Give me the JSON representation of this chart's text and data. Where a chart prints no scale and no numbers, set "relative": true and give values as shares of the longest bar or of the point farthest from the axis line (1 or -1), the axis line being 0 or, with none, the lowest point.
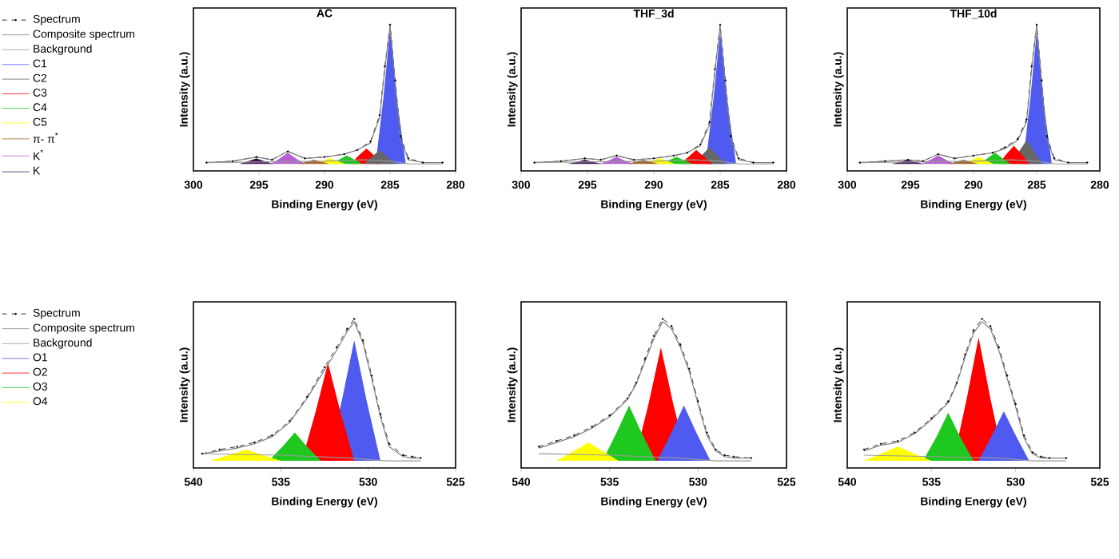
{
  "chart_data": [
    {
      "type": "line",
      "title": "AC",
      "xlabel": "Binding Energy (eV)",
      "ylabel": "Intensity (a.u.)",
      "xlim": [
        300,
        280
      ],
      "xticks": [
        300,
        295,
        290,
        285,
        280
      ],
      "relative": true,
      "legend": "left",
      "series": [
        {
          "name": "Spectrum",
          "type": "line",
          "color": "#000000",
          "line_style": "dashed",
          "marker": "circle",
          "x": [
            299,
            297,
            295.2,
            294,
            292.8,
            291.5,
            290,
            288.5,
            287.5,
            286.5,
            285.8,
            285.4,
            285.0,
            284.6,
            284.2,
            283.6,
            282.5,
            281
          ],
          "values": [
            0.01,
            0.02,
            0.05,
            0.03,
            0.09,
            0.04,
            0.05,
            0.07,
            0.1,
            0.16,
            0.35,
            0.7,
            1.0,
            0.6,
            0.2,
            0.04,
            0.01,
            0.01
          ]
        },
        {
          "name": "Composite spectrum",
          "type": "line",
          "color": "#808080",
          "line_style": "solid",
          "x": [
            299,
            297,
            295.2,
            294,
            292.8,
            291.5,
            290,
            288.5,
            287.5,
            286.5,
            285.8,
            285.4,
            285.0,
            284.6,
            284.2,
            283.6,
            282.5,
            281
          ],
          "values": [
            0.01,
            0.02,
            0.05,
            0.03,
            0.09,
            0.04,
            0.05,
            0.07,
            0.1,
            0.15,
            0.33,
            0.68,
            0.99,
            0.58,
            0.18,
            0.03,
            0.01,
            0.01
          ]
        },
        {
          "name": "Background",
          "type": "line",
          "color": "#999999",
          "line_style": "solid",
          "x": [
            299,
            290,
            287,
            285,
            283.5,
            281
          ],
          "values": [
            0.01,
            0.02,
            0.03,
            0.02,
            0.0,
            0.0
          ]
        },
        {
          "name": "C1",
          "type": "area",
          "color": "#4f5bf0",
          "x": [
            286.1,
            285.5,
            285.0,
            284.5,
            283.8
          ],
          "values": [
            0,
            0.48,
            0.97,
            0.48,
            0
          ]
        },
        {
          "name": "C2",
          "type": "area",
          "color": "#666666",
          "x": [
            287.0,
            286.4,
            285.8,
            285.2,
            284.6
          ],
          "values": [
            0,
            0.05,
            0.1,
            0.05,
            0
          ]
        },
        {
          "name": "C3",
          "type": "area",
          "color": "#ff0000",
          "x": [
            288.0,
            287.4,
            286.8,
            286.2,
            285.6
          ],
          "values": [
            0,
            0.06,
            0.11,
            0.06,
            0
          ]
        },
        {
          "name": "C4",
          "type": "area",
          "color": "#1ec81e",
          "x": [
            289.5,
            288.9,
            288.3,
            287.7,
            287.1
          ],
          "values": [
            0,
            0.03,
            0.06,
            0.03,
            0
          ]
        },
        {
          "name": "C5",
          "type": "area",
          "color": "#ffff00",
          "x": [
            290.8,
            290.2,
            289.6,
            289.0,
            288.4
          ],
          "values": [
            0,
            0.02,
            0.04,
            0.02,
            0
          ]
        },
        {
          "name": "π- π$^{*}$",
          "type": "area",
          "color": "#a0642d",
          "x": [
            292.0,
            291.4,
            290.8,
            290.2,
            289.6
          ],
          "values": [
            0,
            0.015,
            0.03,
            0.015,
            0
          ]
        },
        {
          "name": "K$^{*}$",
          "type": "area",
          "color": "#b45fd2",
          "x": [
            294.1,
            293.4,
            292.8,
            292.2,
            291.5
          ],
          "values": [
            0,
            0.04,
            0.08,
            0.04,
            0
          ]
        },
        {
          "name": "K",
          "type": "area",
          "color": "#3c1450",
          "x": [
            296.5,
            295.8,
            295.2,
            294.6,
            293.9
          ],
          "values": [
            0,
            0.02,
            0.04,
            0.02,
            0
          ]
        }
      ]
    },
    {
      "type": "line",
      "title": "THF_3d",
      "xlabel": "Binding Energy (eV)",
      "ylabel": "Intensity (a.u.)",
      "xlim": [
        300,
        280
      ],
      "xticks": [
        300,
        295,
        290,
        285,
        280
      ],
      "relative": true,
      "series": [
        {
          "type": "line",
          "color": "#000000",
          "line_style": "dashed",
          "marker": "circle",
          "x": [
            299,
            297,
            295.2,
            294,
            292.8,
            291.5,
            290,
            288.5,
            287.5,
            286.5,
            285.8,
            285.4,
            285.0,
            284.6,
            284.2,
            283.6,
            282.5,
            281
          ],
          "values": [
            0.01,
            0.02,
            0.04,
            0.03,
            0.06,
            0.03,
            0.04,
            0.06,
            0.08,
            0.14,
            0.3,
            0.68,
            1.0,
            0.6,
            0.2,
            0.04,
            0.01,
            0.01
          ]
        },
        {
          "type": "line",
          "color": "#808080",
          "line_style": "solid",
          "x": [
            299,
            297,
            295.2,
            294,
            292.8,
            291.5,
            290,
            288.5,
            287.5,
            286.5,
            285.8,
            285.4,
            285.0,
            284.6,
            284.2,
            283.6,
            282.5,
            281
          ],
          "values": [
            0.01,
            0.02,
            0.04,
            0.03,
            0.06,
            0.03,
            0.04,
            0.06,
            0.08,
            0.13,
            0.28,
            0.66,
            0.99,
            0.58,
            0.18,
            0.03,
            0.01,
            0.01
          ]
        },
        {
          "type": "line",
          "color": "#999999",
          "line_style": "solid",
          "x": [
            299,
            290,
            287,
            285,
            283.5,
            281
          ],
          "values": [
            0.01,
            0.02,
            0.03,
            0.02,
            0.0,
            0.0
          ]
        },
        {
          "type": "area",
          "color": "#4f5bf0",
          "x": [
            286.1,
            285.5,
            285.0,
            284.5,
            283.8
          ],
          "values": [
            0,
            0.47,
            0.95,
            0.47,
            0
          ]
        },
        {
          "type": "area",
          "color": "#666666",
          "x": [
            287.0,
            286.4,
            285.8,
            285.2,
            284.6
          ],
          "values": [
            0,
            0.06,
            0.12,
            0.06,
            0
          ]
        },
        {
          "type": "area",
          "color": "#ff0000",
          "x": [
            288.0,
            287.4,
            286.8,
            286.2,
            285.6
          ],
          "values": [
            0,
            0.05,
            0.1,
            0.05,
            0
          ]
        },
        {
          "type": "area",
          "color": "#1ec81e",
          "x": [
            289.5,
            288.9,
            288.3,
            287.7,
            287.1
          ],
          "values": [
            0,
            0.025,
            0.05,
            0.025,
            0
          ]
        },
        {
          "type": "area",
          "color": "#ffff00",
          "x": [
            290.8,
            290.2,
            289.6,
            289.0,
            288.4
          ],
          "values": [
            0,
            0.02,
            0.04,
            0.02,
            0
          ]
        },
        {
          "type": "area",
          "color": "#a0642d",
          "x": [
            292.0,
            291.4,
            290.8,
            290.2,
            289.6
          ],
          "values": [
            0,
            0.015,
            0.03,
            0.015,
            0
          ]
        },
        {
          "type": "area",
          "color": "#b45fd2",
          "x": [
            294.1,
            293.4,
            292.8,
            292.2,
            291.5
          ],
          "values": [
            0,
            0.025,
            0.05,
            0.025,
            0
          ]
        },
        {
          "type": "area",
          "color": "#3c1450",
          "x": [
            296.5,
            295.8,
            295.2,
            294.6,
            293.9
          ],
          "values": [
            0,
            0.015,
            0.03,
            0.015,
            0
          ]
        }
      ]
    },
    {
      "type": "line",
      "title": "THF_10d",
      "xlabel": "Binding Energy (eV)",
      "ylabel": "Intensity (a.u.)",
      "xlim": [
        300,
        280
      ],
      "xticks": [
        300,
        295,
        290,
        285,
        280
      ],
      "relative": true,
      "series": [
        {
          "type": "line",
          "color": "#000000",
          "line_style": "dashed",
          "marker": "circle",
          "x": [
            299,
            297,
            295.2,
            294,
            292.8,
            291.5,
            290,
            288.5,
            287.5,
            286.5,
            285.8,
            285.4,
            285.0,
            284.6,
            284.2,
            283.6,
            282.5,
            281
          ],
          "values": [
            0.01,
            0.02,
            0.03,
            0.02,
            0.07,
            0.04,
            0.06,
            0.08,
            0.12,
            0.18,
            0.32,
            0.7,
            1.0,
            0.6,
            0.2,
            0.04,
            0.01,
            0.01
          ]
        },
        {
          "type": "line",
          "color": "#808080",
          "line_style": "solid",
          "x": [
            299,
            297,
            295.2,
            294,
            292.8,
            291.5,
            290,
            288.5,
            287.5,
            286.5,
            285.8,
            285.4,
            285.0,
            284.6,
            284.2,
            283.6,
            282.5,
            281
          ],
          "values": [
            0.01,
            0.02,
            0.03,
            0.02,
            0.07,
            0.04,
            0.06,
            0.08,
            0.11,
            0.17,
            0.3,
            0.68,
            0.99,
            0.58,
            0.18,
            0.03,
            0.01,
            0.01
          ]
        },
        {
          "type": "line",
          "color": "#999999",
          "line_style": "solid",
          "x": [
            299,
            290,
            287,
            285,
            283.5,
            281
          ],
          "values": [
            0.01,
            0.02,
            0.03,
            0.02,
            0.0,
            0.0
          ]
        },
        {
          "type": "area",
          "color": "#4f5bf0",
          "x": [
            286.1,
            285.5,
            285.0,
            284.5,
            283.8
          ],
          "values": [
            0,
            0.47,
            0.95,
            0.47,
            0
          ]
        },
        {
          "type": "area",
          "color": "#666666",
          "x": [
            287.0,
            286.4,
            285.8,
            285.2,
            284.6
          ],
          "values": [
            0,
            0.09,
            0.17,
            0.09,
            0
          ]
        },
        {
          "type": "area",
          "color": "#ff0000",
          "x": [
            288.0,
            287.4,
            286.8,
            286.2,
            285.6
          ],
          "values": [
            0,
            0.07,
            0.13,
            0.07,
            0
          ]
        },
        {
          "type": "area",
          "color": "#1ec81e",
          "x": [
            289.5,
            288.9,
            288.3,
            287.7,
            287.1
          ],
          "values": [
            0,
            0.04,
            0.08,
            0.04,
            0
          ]
        },
        {
          "type": "area",
          "color": "#ffff00",
          "x": [
            290.8,
            290.2,
            289.6,
            289.0,
            288.4
          ],
          "values": [
            0,
            0.025,
            0.05,
            0.025,
            0
          ]
        },
        {
          "type": "area",
          "color": "#a0642d",
          "x": [
            292.0,
            291.4,
            290.8,
            290.2,
            289.6
          ],
          "values": [
            0,
            0.015,
            0.03,
            0.015,
            0
          ]
        },
        {
          "type": "area",
          "color": "#b45fd2",
          "x": [
            294.1,
            293.4,
            292.8,
            292.2,
            291.5
          ],
          "values": [
            0,
            0.03,
            0.06,
            0.03,
            0
          ]
        },
        {
          "type": "area",
          "color": "#3c1450",
          "x": [
            296.5,
            295.8,
            295.2,
            294.6,
            293.9
          ],
          "values": [
            0,
            0.015,
            0.03,
            0.015,
            0
          ]
        }
      ]
    },
    {
      "type": "line",
      "xlabel": "Binding Energy (eV)",
      "ylabel": "Intensity (a.u.)",
      "xlim": [
        540,
        525
      ],
      "xticks": [
        540,
        535,
        530,
        525
      ],
      "relative": true,
      "legend": "left",
      "series": [
        {
          "name": "Spectrum",
          "type": "line",
          "color": "#000000",
          "line_style": "dashed",
          "marker": "circle",
          "x": [
            539.5,
            538.5,
            537.5,
            536.5,
            535.5,
            534.5,
            533.5,
            532.5,
            531.8,
            531.2,
            530.8,
            530.3,
            529.8,
            529.3,
            528.8,
            528,
            527.5,
            527
          ],
          "values": [
            0.05,
            0.08,
            0.1,
            0.13,
            0.18,
            0.28,
            0.45,
            0.66,
            0.8,
            0.93,
            1.0,
            0.85,
            0.6,
            0.33,
            0.12,
            0.04,
            0.03,
            0.02
          ]
        },
        {
          "name": "Composite spectrum",
          "type": "line",
          "color": "#808080",
          "line_style": "solid",
          "x": [
            539.5,
            538.5,
            537.5,
            536.5,
            535.5,
            534.5,
            533.5,
            532.5,
            531.8,
            531.2,
            530.8,
            530.3,
            529.8,
            529.3,
            528.8,
            528,
            527.5,
            527
          ],
          "values": [
            0.05,
            0.07,
            0.09,
            0.12,
            0.17,
            0.27,
            0.44,
            0.64,
            0.78,
            0.91,
            0.98,
            0.83,
            0.58,
            0.31,
            0.1,
            0.03,
            0.02,
            0.02
          ]
        },
        {
          "name": "Background",
          "type": "line",
          "color": "#999999",
          "line_style": "solid",
          "x": [
            539.5,
            535,
            531,
            529,
            527
          ],
          "values": [
            0.05,
            0.04,
            0.02,
            0.0,
            0.0
          ]
        },
        {
          "name": "O1",
          "type": "area",
          "color": "#4f5bf0",
          "x": [
            532.3,
            531.5,
            530.8,
            530.1,
            529.3
          ],
          "values": [
            0,
            0.43,
            0.85,
            0.43,
            0
          ]
        },
        {
          "name": "O2",
          "type": "area",
          "color": "#ff0000",
          "x": [
            533.8,
            533.0,
            532.3,
            531.6,
            530.8
          ],
          "values": [
            0,
            0.35,
            0.69,
            0.35,
            0
          ]
        },
        {
          "name": "O3",
          "type": "area",
          "color": "#1ec81e",
          "x": [
            535.7,
            534.9,
            534.2,
            533.5,
            532.7
          ],
          "values": [
            0,
            0.1,
            0.2,
            0.1,
            0
          ]
        },
        {
          "name": "O4",
          "type": "area",
          "color": "#ffff00",
          "x": [
            539,
            538,
            537,
            536,
            535
          ],
          "values": [
            0,
            0.04,
            0.08,
            0.04,
            0
          ]
        }
      ]
    },
    {
      "type": "line",
      "xlabel": "Binding Energy (eV)",
      "ylabel": "Intensity (a.u.)",
      "xlim": [
        540,
        525
      ],
      "xticks": [
        540,
        535,
        530,
        525
      ],
      "relative": true,
      "series": [
        {
          "type": "line",
          "color": "#000000",
          "line_style": "dashed",
          "marker": "circle",
          "x": [
            539,
            538,
            537,
            536,
            535,
            534,
            533.5,
            533,
            532.5,
            532,
            531.5,
            531,
            530.5,
            530,
            529.5,
            529,
            528.5,
            528,
            527
          ],
          "values": [
            0.1,
            0.14,
            0.18,
            0.24,
            0.32,
            0.44,
            0.55,
            0.72,
            0.88,
            1.0,
            0.95,
            0.82,
            0.65,
            0.42,
            0.2,
            0.08,
            0.04,
            0.03,
            0.02
          ]
        },
        {
          "type": "line",
          "color": "#808080",
          "line_style": "solid",
          "x": [
            539,
            538,
            537,
            536,
            535,
            534,
            533.5,
            533,
            532.5,
            532,
            531.5,
            531,
            530.5,
            530,
            529.5,
            529,
            528.5,
            528,
            527
          ],
          "values": [
            0.09,
            0.13,
            0.17,
            0.23,
            0.31,
            0.43,
            0.54,
            0.7,
            0.86,
            0.98,
            0.93,
            0.8,
            0.63,
            0.4,
            0.18,
            0.07,
            0.03,
            0.02,
            0.02
          ]
        },
        {
          "type": "line",
          "color": "#999999",
          "line_style": "solid",
          "x": [
            539,
            535,
            531,
            529,
            527
          ],
          "values": [
            0.05,
            0.04,
            0.02,
            0.0,
            0.0
          ]
        },
        {
          "type": "area",
          "color": "#4f5bf0",
          "x": [
            532.3,
            531.5,
            530.8,
            530.1,
            529.3
          ],
          "values": [
            0,
            0.2,
            0.39,
            0.2,
            0
          ]
        },
        {
          "type": "area",
          "color": "#ff0000",
          "x": [
            533.6,
            532.8,
            532.1,
            531.4,
            530.6
          ],
          "values": [
            0,
            0.4,
            0.8,
            0.4,
            0
          ]
        },
        {
          "type": "area",
          "color": "#1ec81e",
          "x": [
            535.4,
            534.6,
            533.9,
            533.2,
            532.4
          ],
          "values": [
            0,
            0.2,
            0.39,
            0.2,
            0
          ]
        },
        {
          "type": "area",
          "color": "#ffff00",
          "x": [
            538,
            537,
            536.2,
            535.4,
            534.5
          ],
          "values": [
            0,
            0.07,
            0.13,
            0.07,
            0
          ]
        }
      ]
    },
    {
      "type": "line",
      "xlabel": "Binding Energy (eV)",
      "ylabel": "Intensity (a.u.)",
      "xlim": [
        540,
        525
      ],
      "xticks": [
        540,
        535,
        530,
        525
      ],
      "relative": true,
      "series": [
        {
          "type": "line",
          "color": "#000000",
          "line_style": "dashed",
          "marker": "circle",
          "x": [
            539,
            538,
            537,
            536,
            535,
            534,
            533.5,
            533,
            532.5,
            532,
            531.5,
            531,
            530.5,
            530,
            529.5,
            529,
            528.5,
            528,
            527
          ],
          "values": [
            0.08,
            0.12,
            0.14,
            0.2,
            0.3,
            0.42,
            0.55,
            0.75,
            0.92,
            1.0,
            0.95,
            0.8,
            0.6,
            0.4,
            0.18,
            0.06,
            0.03,
            0.02,
            0.02
          ]
        },
        {
          "type": "line",
          "color": "#808080",
          "line_style": "solid",
          "x": [
            539,
            538,
            537,
            536,
            535,
            534,
            533.5,
            533,
            532.5,
            532,
            531.5,
            531,
            530.5,
            530,
            529.5,
            529,
            528.5,
            528,
            527
          ],
          "values": [
            0.07,
            0.11,
            0.13,
            0.19,
            0.29,
            0.41,
            0.54,
            0.73,
            0.9,
            0.98,
            0.93,
            0.78,
            0.58,
            0.38,
            0.16,
            0.05,
            0.02,
            0.02,
            0.02
          ]
        },
        {
          "type": "line",
          "color": "#999999",
          "line_style": "solid",
          "x": [
            539,
            535,
            531,
            529,
            527
          ],
          "values": [
            0.04,
            0.03,
            0.02,
            0.0,
            0.0
          ]
        },
        {
          "type": "area",
          "color": "#4f5bf0",
          "x": [
            532.2,
            531.4,
            530.7,
            530.0,
            529.2
          ],
          "values": [
            0,
            0.18,
            0.35,
            0.18,
            0
          ]
        },
        {
          "type": "area",
          "color": "#ff0000",
          "x": [
            533.7,
            532.9,
            532.2,
            531.5,
            530.7
          ],
          "values": [
            0,
            0.44,
            0.87,
            0.44,
            0
          ]
        },
        {
          "type": "area",
          "color": "#1ec81e",
          "x": [
            535.5,
            534.7,
            534.0,
            533.3,
            532.5
          ],
          "values": [
            0,
            0.17,
            0.34,
            0.17,
            0
          ]
        },
        {
          "type": "area",
          "color": "#ffff00",
          "x": [
            539,
            538,
            537,
            536,
            535
          ],
          "values": [
            0,
            0.05,
            0.1,
            0.05,
            0
          ]
        }
      ]
    }
  ]
}
